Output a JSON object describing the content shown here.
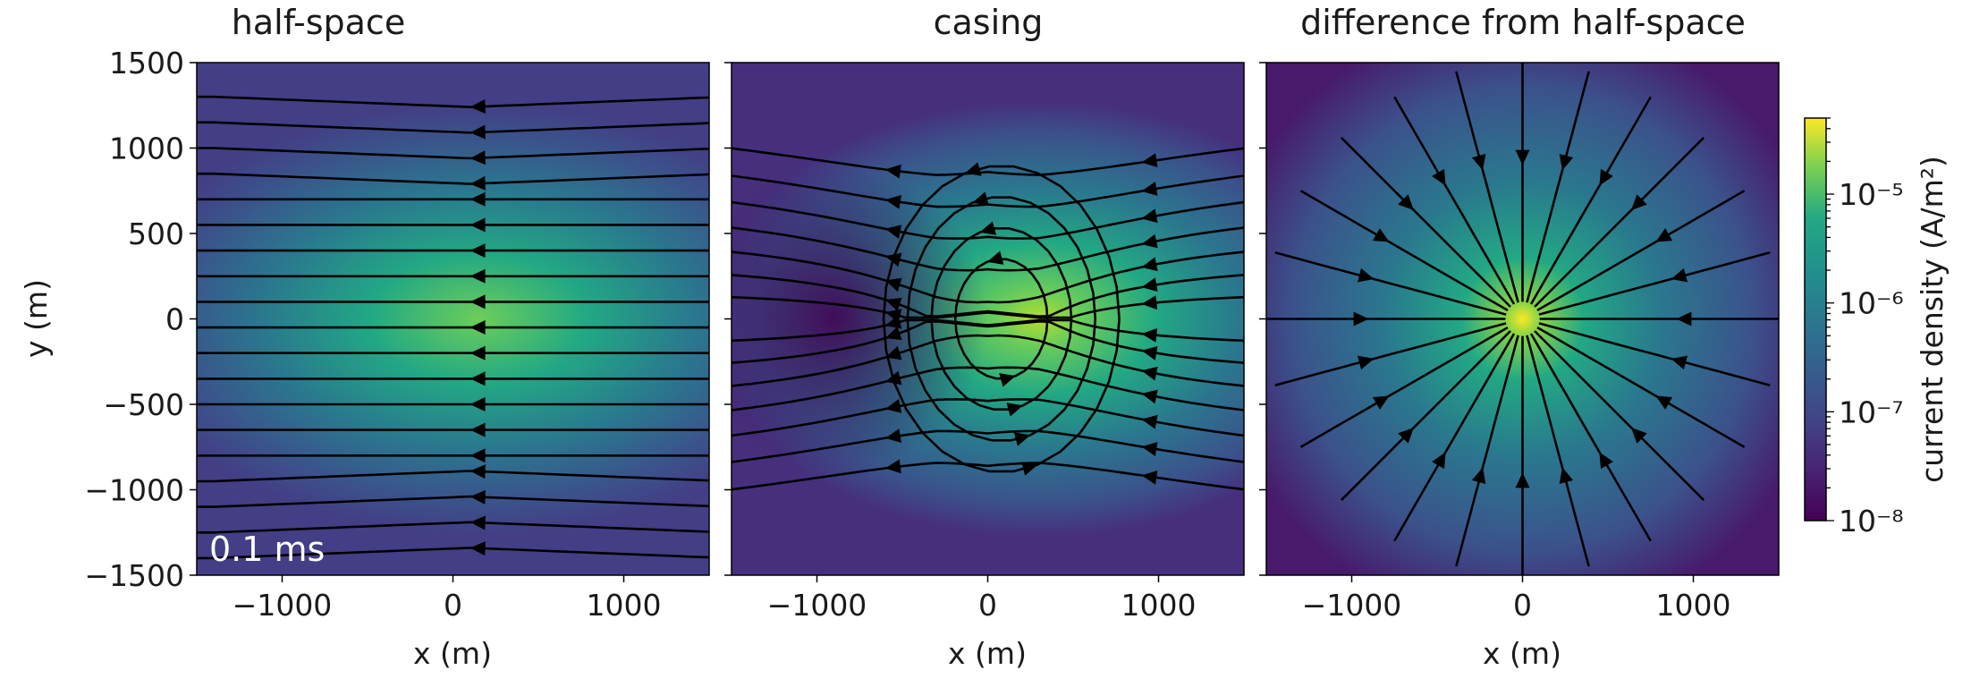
{
  "chart_data": {
    "type": "heatmap",
    "panels": [
      {
        "id": "half",
        "title": "half-space",
        "field": "dipole-plus-uniform",
        "xlabel": "x (m)",
        "ylabel": "y (m)",
        "annotation": "0.1 ms"
      },
      {
        "id": "casing",
        "title": "casing",
        "field": "casing-source",
        "xlabel": "x (m)",
        "ylabel": ""
      },
      {
        "id": "diff",
        "title": "difference from half-space",
        "field": "radial-source",
        "xlabel": "x (m)",
        "ylabel": ""
      }
    ],
    "xlim": [
      -1500,
      1500
    ],
    "ylim": [
      -1500,
      1500
    ],
    "xticks": [
      -1000,
      0,
      1000
    ],
    "xtick_labels": [
      "−1000",
      "0",
      "1000"
    ],
    "yticks": [
      1500,
      1000,
      500,
      0,
      -500,
      -1000,
      -1500
    ],
    "ytick_labels": [
      "1500",
      "1000",
      "500",
      "0",
      "−500",
      "−1000",
      "−1500"
    ],
    "colorbar": {
      "label": "current density (A/m²)",
      "scale": "log",
      "range": [
        1e-08,
        5e-05
      ],
      "tick_values": [
        1e-05,
        1e-06,
        1e-07,
        1e-08
      ],
      "tick_labels": [
        "10⁻⁵",
        "10⁻⁶",
        "10⁻⁷",
        "10⁻⁸"
      ],
      "colormap": "viridis"
    },
    "colors": {
      "streamline": "#000000"
    }
  }
}
